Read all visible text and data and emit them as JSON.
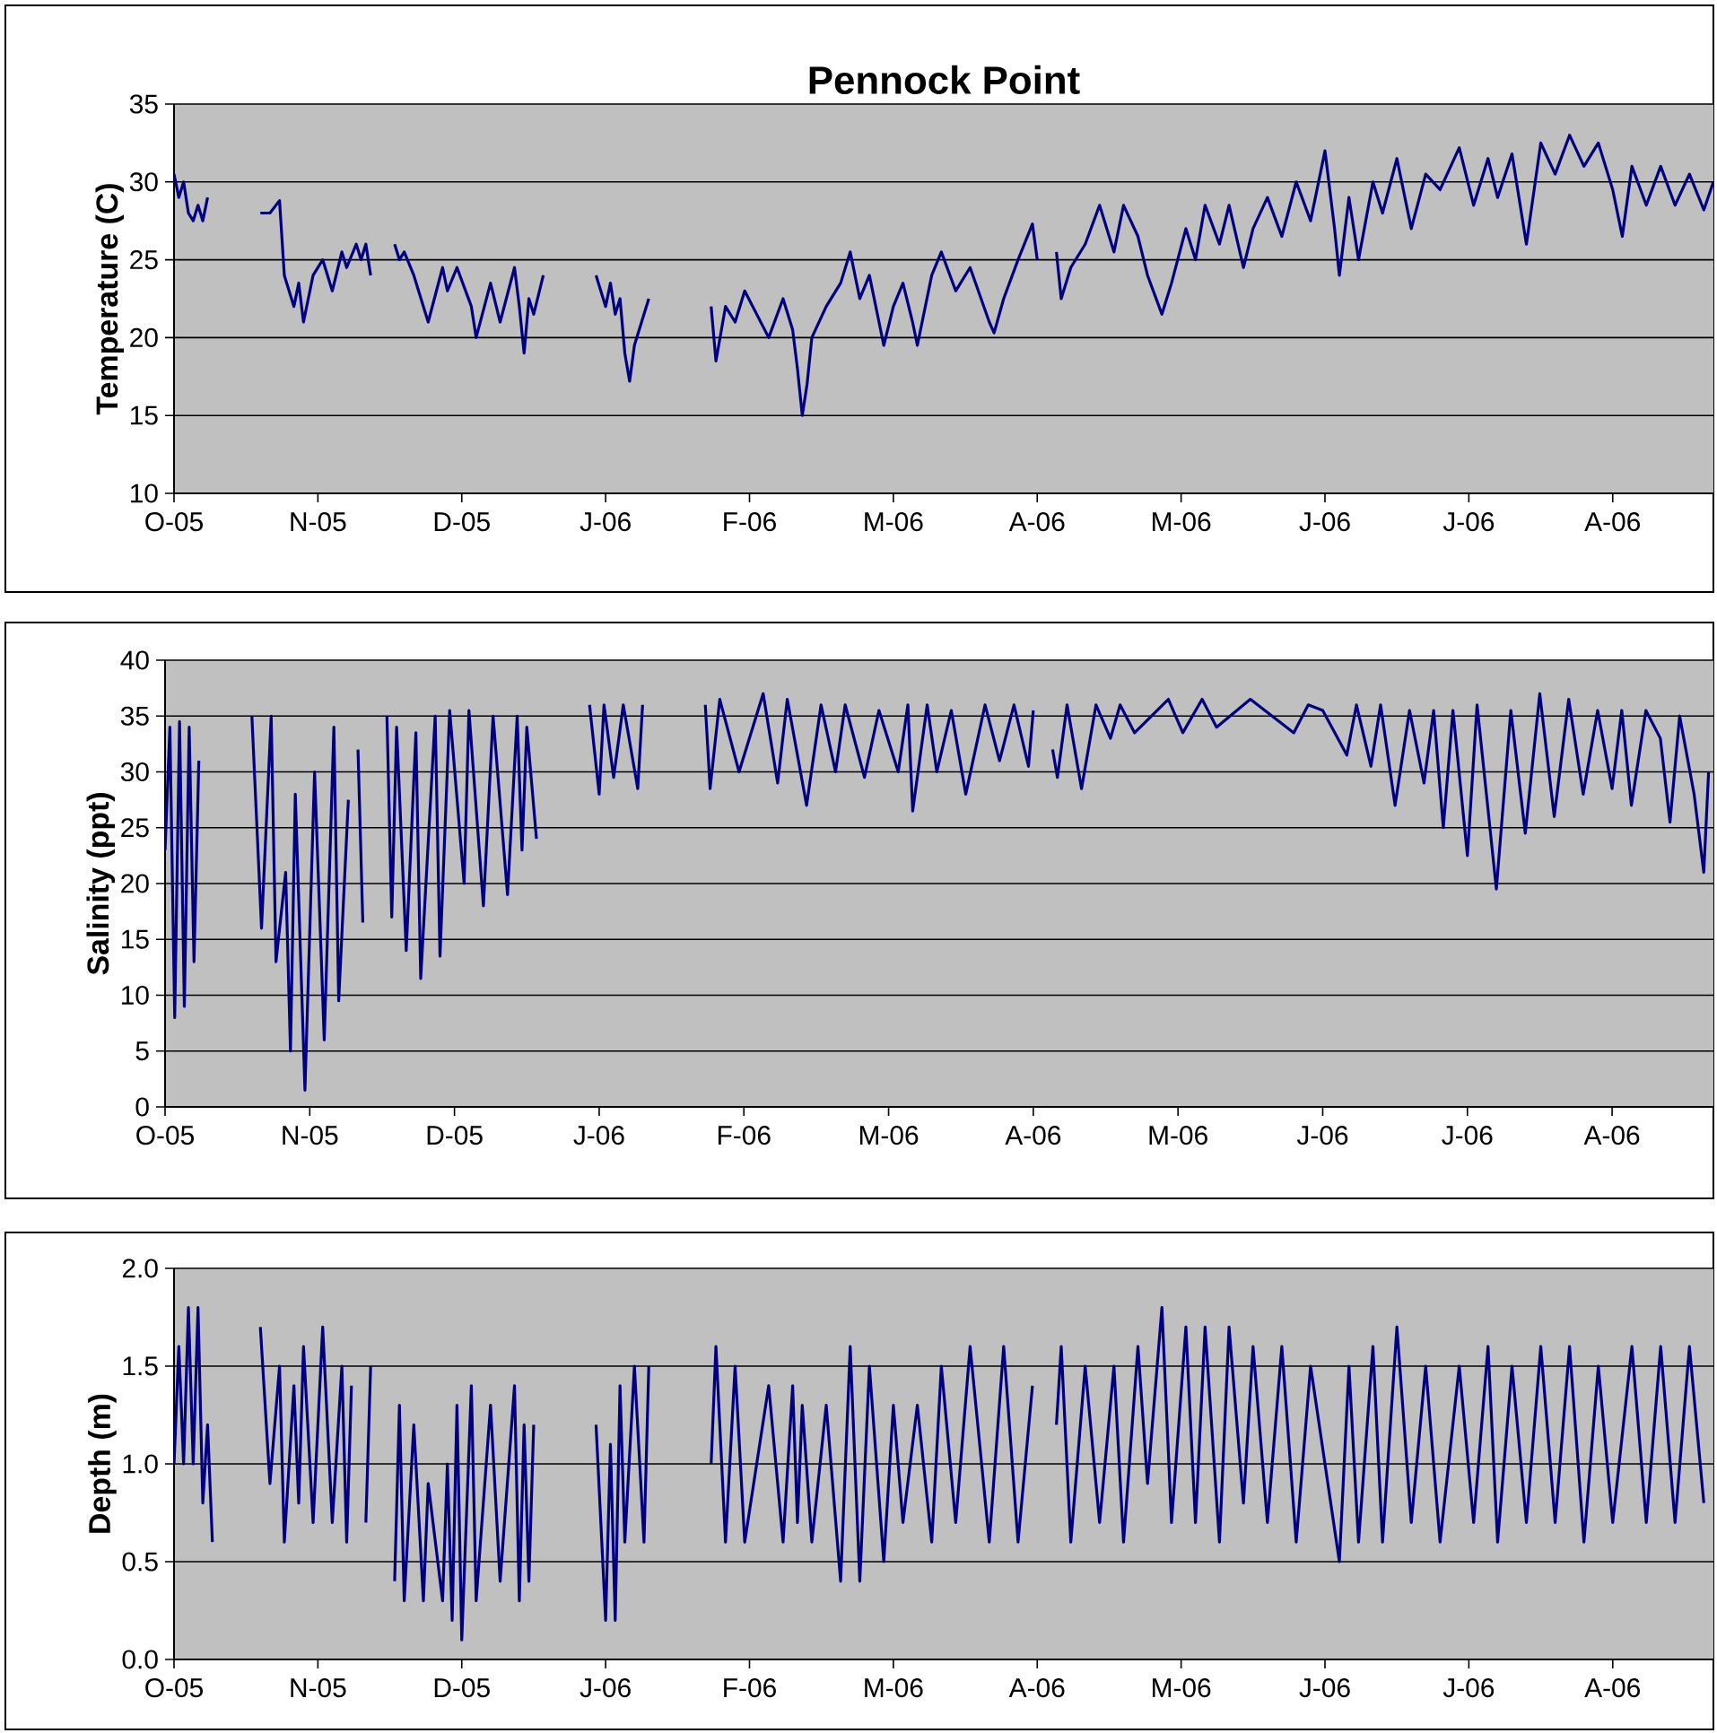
{
  "chart_data": [
    {
      "type": "line",
      "title": "Pennock Point",
      "ylabel": "Temperature (C)",
      "color": "#000080",
      "grid": "y",
      "xlim": [
        "2005-10-05",
        "2006-08-22"
      ],
      "xticks": [
        {
          "value": "2005-10-05",
          "label": "O-05"
        },
        {
          "value": "2005-11-04",
          "label": "N-05"
        },
        {
          "value": "2005-12-04",
          "label": "D-05"
        },
        {
          "value": "2006-01-03",
          "label": "J-06"
        },
        {
          "value": "2006-02-02",
          "label": "F-06"
        },
        {
          "value": "2006-03-04",
          "label": "M-06"
        },
        {
          "value": "2006-04-03",
          "label": "A-06"
        },
        {
          "value": "2006-05-03",
          "label": "M-06"
        },
        {
          "value": "2006-06-02",
          "label": "J-06"
        },
        {
          "value": "2006-07-02",
          "label": "J-06"
        },
        {
          "value": "2006-08-01",
          "label": "A-06"
        }
      ],
      "ylim": [
        10,
        35
      ],
      "yticks": [
        10,
        15,
        20,
        25,
        30,
        35
      ],
      "x": [
        "2005-10-05",
        "2005-10-06",
        "2005-10-07",
        "2005-10-08",
        "2005-10-09",
        "2005-10-10",
        "2005-10-11",
        "2005-10-12",
        "2005-10-17",
        "2005-10-23",
        "2005-10-25",
        "2005-10-27",
        "2005-10-28",
        "2005-10-30",
        "2005-10-31",
        "2005-11-01",
        "2005-11-03",
        "2005-11-05",
        "2005-11-07",
        "2005-11-09",
        "2005-11-10",
        "2005-11-12",
        "2005-11-13",
        "2005-11-14",
        "2005-11-15",
        "2005-11-17",
        "2005-11-20",
        "2005-11-21",
        "2005-11-22",
        "2005-11-24",
        "2005-11-26",
        "2005-11-27",
        "2005-11-30",
        "2005-12-01",
        "2005-12-03",
        "2005-12-06",
        "2005-12-07",
        "2005-12-10",
        "2005-12-12",
        "2005-12-15",
        "2005-12-16",
        "2005-12-17",
        "2005-12-18",
        "2005-12-19",
        "2005-12-21",
        "2005-12-26",
        "2006-01-01",
        "2006-01-03",
        "2006-01-04",
        "2006-01-05",
        "2006-01-06",
        "2006-01-07",
        "2006-01-08",
        "2006-01-09",
        "2006-01-11",
        "2006-01-12",
        "2006-01-18",
        "2006-01-25",
        "2006-01-26",
        "2006-01-28",
        "2006-01-30",
        "2006-02-01",
        "2006-02-06",
        "2006-02-09",
        "2006-02-11",
        "2006-02-12",
        "2006-02-13",
        "2006-02-14",
        "2006-02-15",
        "2006-02-18",
        "2006-02-21",
        "2006-02-23",
        "2006-02-25",
        "2006-02-27",
        "2006-03-02",
        "2006-03-04",
        "2006-03-06",
        "2006-03-08",
        "2006-03-09",
        "2006-03-12",
        "2006-03-14",
        "2006-03-17",
        "2006-03-20",
        "2006-03-24",
        "2006-03-25",
        "2006-03-27",
        "2006-03-30",
        "2006-04-02",
        "2006-04-03",
        "2006-04-05",
        "2006-04-07",
        "2006-04-08",
        "2006-04-10",
        "2006-04-13",
        "2006-04-16",
        "2006-04-19",
        "2006-04-21",
        "2006-04-24",
        "2006-04-26",
        "2006-04-29",
        "2006-05-01",
        "2006-05-04",
        "2006-05-06",
        "2006-05-08",
        "2006-05-11",
        "2006-05-13",
        "2006-05-16",
        "2006-05-18",
        "2006-05-21",
        "2006-05-24",
        "2006-05-27",
        "2006-05-30",
        "2006-06-02",
        "2006-06-04",
        "2006-06-05",
        "2006-06-07",
        "2006-06-09",
        "2006-06-12",
        "2006-06-14",
        "2006-06-17",
        "2006-06-20",
        "2006-06-23",
        "2006-06-26",
        "2006-06-30",
        "2006-07-03",
        "2006-07-06",
        "2006-07-08",
        "2006-07-11",
        "2006-07-14",
        "2006-07-17",
        "2006-07-20",
        "2006-07-23",
        "2006-07-26",
        "2006-07-29",
        "2006-08-01",
        "2006-08-03",
        "2006-08-05",
        "2006-08-08",
        "2006-08-11",
        "2006-08-14",
        "2006-08-17",
        "2006-08-20",
        "2006-08-22"
      ],
      "values": [
        30.5,
        29,
        30,
        28,
        27.5,
        28.5,
        27.5,
        29,
        null,
        28,
        28,
        28.8,
        24,
        22,
        23.5,
        21,
        24,
        25,
        23,
        25.5,
        24.5,
        26,
        25,
        26,
        24,
        null,
        26,
        25,
        25.5,
        24,
        22,
        21,
        24.5,
        23,
        24.5,
        22,
        20,
        23.5,
        21,
        24.5,
        22,
        19,
        22.5,
        21.5,
        24,
        null,
        24,
        22,
        23.5,
        21.5,
        22.5,
        19,
        17.2,
        19.5,
        21.5,
        22.5,
        null,
        22,
        18.5,
        22,
        21,
        23,
        20,
        22.5,
        20.5,
        18,
        15,
        17,
        20,
        22,
        23.5,
        25.5,
        22.5,
        24,
        19.5,
        22,
        23.5,
        21,
        19.5,
        24,
        25.5,
        23,
        24.5,
        21,
        20.3,
        22.5,
        25,
        27.3,
        25,
        null,
        25.5,
        22.5,
        24.5,
        26,
        28.5,
        25.5,
        28.5,
        26.5,
        24,
        21.5,
        23.5,
        27,
        25,
        28.5,
        26,
        28.5,
        24.5,
        27,
        29,
        26.5,
        30,
        27.5,
        32,
        27,
        24,
        29,
        25,
        30,
        28,
        31.5,
        27,
        30.5,
        29.5,
        32.2,
        28.5,
        31.5,
        29,
        31.8,
        26,
        32.5,
        30.5,
        33,
        31,
        32.5,
        29.5,
        26.5,
        31,
        28.5,
        31,
        28.5,
        30.5,
        28.2,
        30
      ]
    },
    {
      "type": "line",
      "ylabel": "Salinity (ppt)",
      "color": "#000080",
      "grid": "y",
      "xlim": [
        "2005-10-05",
        "2006-08-22"
      ],
      "xticks": [
        {
          "value": "2005-10-05",
          "label": "O-05"
        },
        {
          "value": "2005-11-04",
          "label": "N-05"
        },
        {
          "value": "2005-12-04",
          "label": "D-05"
        },
        {
          "value": "2006-01-03",
          "label": "J-06"
        },
        {
          "value": "2006-02-02",
          "label": "F-06"
        },
        {
          "value": "2006-03-04",
          "label": "M-06"
        },
        {
          "value": "2006-04-03",
          "label": "A-06"
        },
        {
          "value": "2006-05-03",
          "label": "M-06"
        },
        {
          "value": "2006-06-02",
          "label": "J-06"
        },
        {
          "value": "2006-07-02",
          "label": "J-06"
        },
        {
          "value": "2006-08-01",
          "label": "A-06"
        }
      ],
      "ylim": [
        0,
        40
      ],
      "yticks": [
        0,
        5,
        10,
        15,
        20,
        25,
        30,
        35,
        40
      ],
      "x": [
        "2005-10-05",
        "2005-10-06",
        "2005-10-07",
        "2005-10-08",
        "2005-10-09",
        "2005-10-10",
        "2005-10-11",
        "2005-10-12",
        "2005-10-17",
        "2005-10-23",
        "2005-10-25",
        "2005-10-27",
        "2005-10-28",
        "2005-10-30",
        "2005-10-31",
        "2005-11-01",
        "2005-11-03",
        "2005-11-05",
        "2005-11-07",
        "2005-11-09",
        "2005-11-10",
        "2005-11-12",
        "2005-11-13",
        "2005-11-14",
        "2005-11-15",
        "2005-11-17",
        "2005-11-20",
        "2005-11-21",
        "2005-11-22",
        "2005-11-24",
        "2005-11-26",
        "2005-11-27",
        "2005-11-30",
        "2005-12-01",
        "2005-12-03",
        "2005-12-06",
        "2005-12-07",
        "2005-12-10",
        "2005-12-12",
        "2005-12-15",
        "2005-12-17",
        "2005-12-18",
        "2005-12-19",
        "2005-12-21",
        "2005-12-26",
        "2006-01-01",
        "2006-01-03",
        "2006-01-04",
        "2006-01-06",
        "2006-01-08",
        "2006-01-11",
        "2006-01-12",
        "2006-01-18",
        "2006-01-25",
        "2006-01-26",
        "2006-01-28",
        "2006-02-01",
        "2006-02-06",
        "2006-02-09",
        "2006-02-11",
        "2006-02-15",
        "2006-02-18",
        "2006-02-21",
        "2006-02-23",
        "2006-02-27",
        "2006-03-02",
        "2006-03-06",
        "2006-03-08",
        "2006-03-09",
        "2006-03-12",
        "2006-03-14",
        "2006-03-17",
        "2006-03-20",
        "2006-03-24",
        "2006-03-27",
        "2006-03-30",
        "2006-04-02",
        "2006-04-03",
        "2006-04-05",
        "2006-04-07",
        "2006-04-08",
        "2006-04-10",
        "2006-04-13",
        "2006-04-16",
        "2006-04-19",
        "2006-04-21",
        "2006-04-24",
        "2006-05-01",
        "2006-05-04",
        "2006-05-08",
        "2006-05-11",
        "2006-05-18",
        "2006-05-27",
        "2006-05-30",
        "2006-06-02",
        "2006-06-07",
        "2006-06-09",
        "2006-06-12",
        "2006-06-14",
        "2006-06-17",
        "2006-06-20",
        "2006-06-23",
        "2006-06-25",
        "2006-06-27",
        "2006-06-29",
        "2006-07-02",
        "2006-07-04",
        "2006-07-08",
        "2006-07-11",
        "2006-07-14",
        "2006-07-17",
        "2006-07-20",
        "2006-07-23",
        "2006-07-26",
        "2006-07-29",
        "2006-08-01",
        "2006-08-03",
        "2006-08-05",
        "2006-08-08",
        "2006-08-11",
        "2006-08-13",
        "2006-08-15",
        "2006-08-18",
        "2006-08-20",
        "2006-08-21"
      ],
      "values": [
        23,
        34,
        8,
        34.5,
        9,
        34,
        13,
        31,
        null,
        35,
        16,
        35,
        13,
        21,
        5,
        28,
        1.5,
        30,
        6,
        34,
        9.5,
        27.5,
        null,
        32,
        16.5,
        null,
        35,
        17,
        34,
        14,
        33.5,
        11.5,
        35,
        13.5,
        35.5,
        20,
        35.5,
        18,
        35,
        19,
        35,
        23,
        34,
        24,
        null,
        36,
        28,
        36,
        29.5,
        36,
        28.5,
        36,
        null,
        36,
        28.5,
        36.5,
        30,
        37,
        29,
        36.5,
        27,
        36,
        30,
        36,
        29.5,
        35.5,
        30,
        36,
        26.5,
        36,
        30,
        35.5,
        28,
        36,
        31,
        36,
        30.5,
        35.5,
        null,
        32,
        29.5,
        36,
        28.5,
        36,
        33,
        36,
        33.5,
        36.5,
        33.5,
        36.5,
        34,
        36.5,
        33.5,
        36,
        35.5,
        31.5,
        36,
        30.5,
        36,
        27,
        35.5,
        29,
        35.5,
        25,
        35.5,
        22.5,
        36,
        19.5,
        35.5,
        24.5,
        37,
        26,
        36.5,
        28,
        35.5,
        28.5,
        35.5,
        27,
        35.5,
        33,
        25.5,
        35,
        28,
        21,
        30
      ]
    },
    {
      "type": "line",
      "ylabel": "Depth (m)",
      "color": "#000080",
      "grid": "y",
      "xlim": [
        "2005-10-05",
        "2006-08-22"
      ],
      "xticks": [
        {
          "value": "2005-10-05",
          "label": "O-05"
        },
        {
          "value": "2005-11-04",
          "label": "N-05"
        },
        {
          "value": "2005-12-04",
          "label": "D-05"
        },
        {
          "value": "2006-01-03",
          "label": "J-06"
        },
        {
          "value": "2006-02-02",
          "label": "F-06"
        },
        {
          "value": "2006-03-04",
          "label": "M-06"
        },
        {
          "value": "2006-04-03",
          "label": "A-06"
        },
        {
          "value": "2006-05-03",
          "label": "M-06"
        },
        {
          "value": "2006-06-02",
          "label": "J-06"
        },
        {
          "value": "2006-07-02",
          "label": "J-06"
        },
        {
          "value": "2006-08-01",
          "label": "A-06"
        }
      ],
      "ylim": [
        0,
        2
      ],
      "yticks": [
        {
          "value": 0,
          "label": "0.0"
        },
        {
          "value": 0.5,
          "label": "0.5"
        },
        {
          "value": 1,
          "label": "1.0"
        },
        {
          "value": 1.5,
          "label": "1.5"
        },
        {
          "value": 2,
          "label": "2.0"
        }
      ],
      "x": [
        "2005-10-05",
        "2005-10-06",
        "2005-10-07",
        "2005-10-08",
        "2005-10-09",
        "2005-10-10",
        "2005-10-11",
        "2005-10-12",
        "2005-10-13",
        "2005-10-17",
        "2005-10-23",
        "2005-10-25",
        "2005-10-27",
        "2005-10-28",
        "2005-10-30",
        "2005-10-31",
        "2005-11-01",
        "2005-11-03",
        "2005-11-05",
        "2005-11-07",
        "2005-11-09",
        "2005-11-10",
        "2005-11-11",
        "2005-11-12",
        "2005-11-14",
        "2005-11-15",
        "2005-11-17",
        "2005-11-20",
        "2005-11-21",
        "2005-11-22",
        "2005-11-24",
        "2005-11-26",
        "2005-11-27",
        "2005-11-30",
        "2005-12-01",
        "2005-12-02",
        "2005-12-03",
        "2005-12-04",
        "2005-12-06",
        "2005-12-07",
        "2005-12-10",
        "2005-12-12",
        "2005-12-15",
        "2005-12-16",
        "2005-12-17",
        "2005-12-18",
        "2005-12-19",
        "2005-12-26",
        "2006-01-01",
        "2006-01-03",
        "2006-01-04",
        "2006-01-05",
        "2006-01-06",
        "2006-01-07",
        "2006-01-09",
        "2006-01-11",
        "2006-01-12",
        "2006-01-18",
        "2006-01-25",
        "2006-01-26",
        "2006-01-28",
        "2006-01-30",
        "2006-02-01",
        "2006-02-06",
        "2006-02-09",
        "2006-02-11",
        "2006-02-12",
        "2006-02-13",
        "2006-02-15",
        "2006-02-18",
        "2006-02-21",
        "2006-02-23",
        "2006-02-25",
        "2006-02-27",
        "2006-03-02",
        "2006-03-04",
        "2006-03-06",
        "2006-03-09",
        "2006-03-12",
        "2006-03-14",
        "2006-03-17",
        "2006-03-20",
        "2006-03-24",
        "2006-03-27",
        "2006-03-30",
        "2006-04-02",
        "2006-04-05",
        "2006-04-07",
        "2006-04-08",
        "2006-04-10",
        "2006-04-13",
        "2006-04-16",
        "2006-04-19",
        "2006-04-21",
        "2006-04-24",
        "2006-04-26",
        "2006-04-29",
        "2006-05-01",
        "2006-05-04",
        "2006-05-06",
        "2006-05-08",
        "2006-05-11",
        "2006-05-13",
        "2006-05-16",
        "2006-05-18",
        "2006-05-21",
        "2006-05-24",
        "2006-05-27",
        "2006-05-30",
        "2006-06-05",
        "2006-06-07",
        "2006-06-09",
        "2006-06-12",
        "2006-06-14",
        "2006-06-17",
        "2006-06-20",
        "2006-06-23",
        "2006-06-26",
        "2006-06-30",
        "2006-07-03",
        "2006-07-06",
        "2006-07-08",
        "2006-07-11",
        "2006-07-14",
        "2006-07-17",
        "2006-07-20",
        "2006-07-23",
        "2006-07-26",
        "2006-07-29",
        "2006-08-01",
        "2006-08-05",
        "2006-08-08",
        "2006-08-11",
        "2006-08-14",
        "2006-08-17",
        "2006-08-20"
      ],
      "values": [
        1.0,
        1.6,
        1.0,
        1.8,
        1.0,
        1.8,
        0.8,
        1.2,
        0.6,
        null,
        1.7,
        0.9,
        1.5,
        0.6,
        1.4,
        0.8,
        1.6,
        0.7,
        1.7,
        0.7,
        1.5,
        0.6,
        1.4,
        null,
        0.7,
        1.5,
        null,
        0.4,
        1.3,
        0.3,
        1.2,
        0.3,
        0.9,
        0.3,
        1.0,
        0.2,
        1.3,
        0.1,
        1.4,
        0.3,
        1.3,
        0.4,
        1.4,
        0.3,
        1.2,
        0.4,
        1.2,
        null,
        1.2,
        0.2,
        1.1,
        0.2,
        1.4,
        0.6,
        1.5,
        0.6,
        1.5,
        null,
        1.0,
        1.6,
        0.6,
        1.5,
        0.6,
        1.4,
        0.6,
        1.4,
        0.7,
        1.3,
        0.6,
        1.3,
        0.4,
        1.6,
        0.4,
        1.5,
        0.5,
        1.3,
        0.7,
        1.3,
        0.6,
        1.5,
        0.7,
        1.6,
        0.6,
        1.6,
        0.6,
        1.4,
        null,
        1.2,
        1.6,
        0.6,
        1.5,
        0.7,
        1.5,
        0.6,
        1.6,
        0.9,
        1.8,
        0.7,
        1.7,
        0.7,
        1.7,
        0.6,
        1.7,
        0.8,
        1.6,
        0.7,
        1.6,
        0.6,
        1.5,
        0.5,
        1.5,
        0.6,
        1.6,
        0.6,
        1.7,
        0.7,
        1.5,
        0.6,
        1.5,
        0.7,
        1.6,
        0.6,
        1.5,
        0.7,
        1.6,
        0.7,
        1.6,
        0.6,
        1.5,
        0.7,
        1.6,
        0.7,
        1.6,
        0.7,
        1.6,
        0.8
      ]
    }
  ]
}
